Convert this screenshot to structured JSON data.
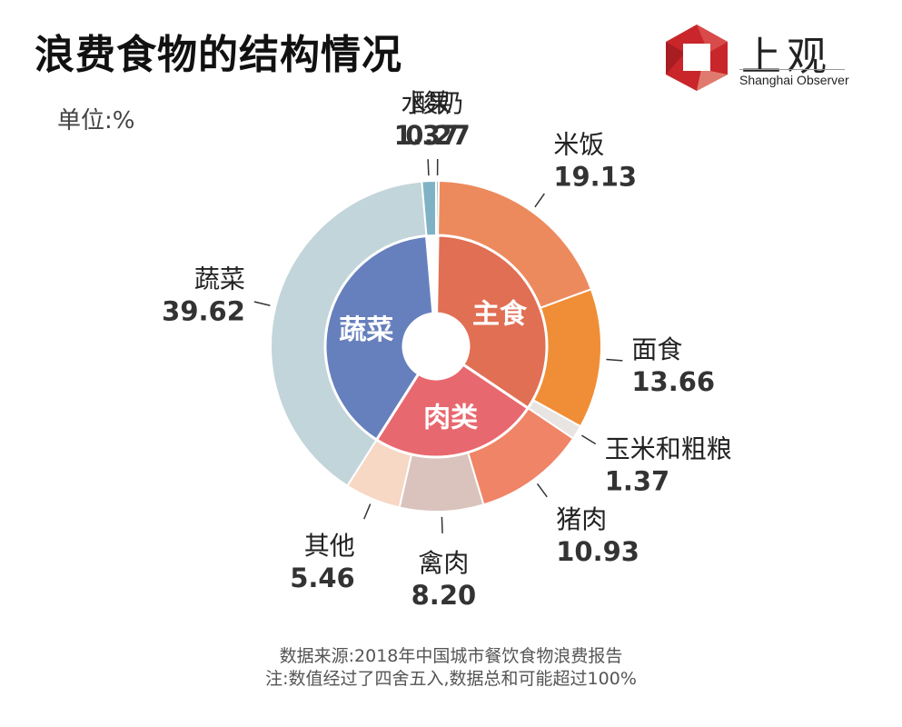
{
  "title": "浪费食物的结构情况",
  "unit_label": "单位:%",
  "logo": {
    "name": "上观",
    "subtitle": "Shanghai Observer",
    "colors": [
      "#c8262b",
      "#e07a6e"
    ]
  },
  "chart_data": {
    "type": "pie",
    "subtype": "nested-donut",
    "title": "浪费食物的结构情况",
    "unit": "%",
    "inner_ring": [
      {
        "name": "主食",
        "color": "#e06f54"
      },
      {
        "name": "肉类",
        "color": "#e8686f"
      },
      {
        "name": "蔬菜",
        "color": "#667fbd"
      }
    ],
    "outer_ring": [
      {
        "name": "酸奶",
        "label": "0.27",
        "value": 0.27,
        "color": "#9ac1cf"
      },
      {
        "name": "米饭",
        "label": "19.13",
        "value": 19.13,
        "color": "#ec8a5e",
        "group": "主食"
      },
      {
        "name": "面食",
        "label": "13.66",
        "value": 13.66,
        "color": "#ef8e36",
        "group": "主食"
      },
      {
        "name": "玉米和粗粮",
        "label": "1.37",
        "value": 1.37,
        "color": "#e8e4e2",
        "group": "主食"
      },
      {
        "name": "猪肉",
        "label": "10.93",
        "value": 10.93,
        "color": "#ef8466",
        "group": "肉类"
      },
      {
        "name": "禽肉",
        "label": "8.20",
        "value": 8.2,
        "color": "#d9c3bc",
        "group": "肉类"
      },
      {
        "name": "其他",
        "label": "5.46",
        "value": 5.46,
        "color": "#f7d8c5",
        "group": "肉类"
      },
      {
        "name": "蔬菜",
        "label": "39.62",
        "value": 39.62,
        "color": "#c2d5da",
        "group": "蔬菜"
      },
      {
        "name": "水果",
        "label": "1.37",
        "value": 1.37,
        "color": "#7fb2c4"
      }
    ]
  },
  "source": {
    "line1": "数据来源:2018年中国城市餐饮食物浪费报告",
    "line2": "注:数值经过了四舍五入,数据总和可能超过100%"
  }
}
